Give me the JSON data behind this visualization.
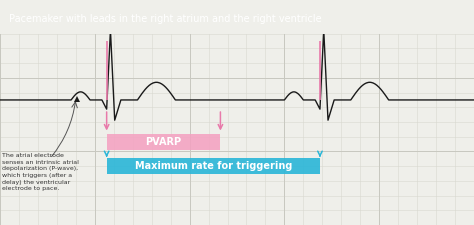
{
  "title": "Pacemaker with leads in the right atrium and the right ventricle",
  "title_bg": "#1a1a1a",
  "title_color": "#ffffff",
  "bg_color": "#efefea",
  "ecg_color": "#1a1a1a",
  "pvarp_color": "#f4a0c0",
  "pvarp_label": "PVARP",
  "pvarp_arrow_color": "#e87aaa",
  "max_rate_color": "#29b6d8",
  "max_rate_label": "Maximum rate for triggering",
  "annotation_text": "The atrial electrode\nsenses an intrinsic atrial\ndepolarization (P-wave),\nwhich triggers (after a\ndelay) the ventricular\nelectrode to pace.",
  "grid_minor_color": "#d8d8d0",
  "grid_major_color": "#c8c8c0",
  "annotation_color": "#333333",
  "arrow_color": "#555555"
}
